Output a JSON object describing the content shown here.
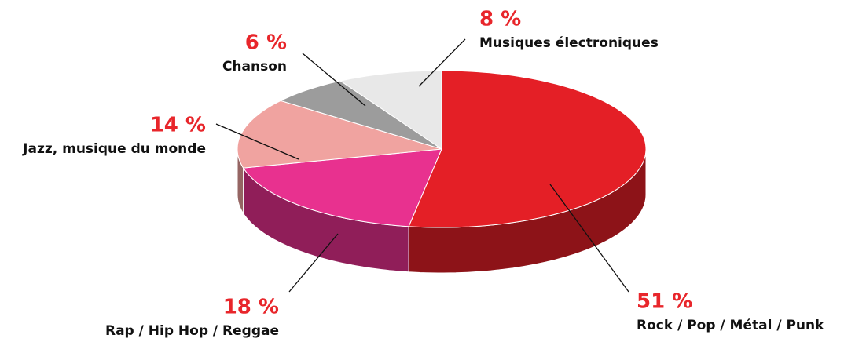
{
  "chart_data": {
    "type": "pie",
    "categories": [
      "Rock / Pop / Métal / Punk",
      "Rap / Hip Hop / Reggae",
      "Jazz, musique du monde",
      "Chanson",
      "Musiques électroniques"
    ],
    "values": [
      51,
      18,
      14,
      6,
      8
    ],
    "value_labels": [
      "51 %",
      "18 %",
      "14 %",
      "6 %",
      "8 %"
    ],
    "colors": [
      "#e41f26",
      "#e8318f",
      "#f0a3a0",
      "#9c9c9c",
      "#e8e8e8"
    ]
  }
}
